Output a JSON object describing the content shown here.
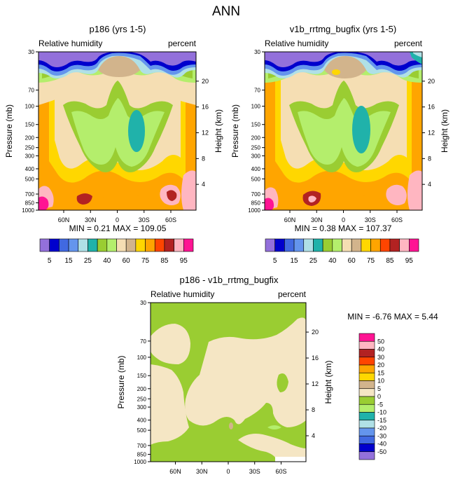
{
  "page": {
    "title": "ANN"
  },
  "colors": {
    "rh_scale": [
      "#9370DB",
      "#0000CD",
      "#4169E1",
      "#6495ED",
      "#B0E0E6",
      "#20B2AA",
      "#9ACD32",
      "#B4EE6C",
      "#F5DEB3",
      "#D2B48C",
      "#FFD700",
      "#FFA500",
      "#FF4500",
      "#B22222",
      "#FFB6C1",
      "#FF1493"
    ],
    "diff_scale": [
      "#FF1493",
      "#FFB6C1",
      "#B22222",
      "#FF4500",
      "#FFA500",
      "#FFD700",
      "#D2B48C",
      "#F5E6C4",
      "#9ACD32",
      "#B4EE6C",
      "#20B2AA",
      "#B0E0E6",
      "#6495ED",
      "#4169E1",
      "#0000CD",
      "#9370DB"
    ]
  },
  "chart_data": [
    {
      "type": "contour",
      "title": "p186 (yrs 1-5)",
      "left_label": "Relative humidity",
      "right_label": "percent",
      "ylabel": "Pressure (mb)",
      "y2label": "Height (km)",
      "x_ticks": [
        "60N",
        "30N",
        "0",
        "30S",
        "60S"
      ],
      "y_ticks": [
        "30",
        "70",
        "100",
        "150",
        "200",
        "250",
        "300",
        "400",
        "500",
        "700",
        "850",
        "1000"
      ],
      "y2_ticks": [
        "20",
        "16",
        "12",
        "8",
        "4"
      ],
      "stats": "MIN =   0.21  MAX = 109.05",
      "colorbar_labels": [
        "5",
        "15",
        "25",
        "40",
        "60",
        "75",
        "85",
        "95"
      ]
    },
    {
      "type": "contour",
      "title": "v1b_rrtmg_bugfix (yrs 1-5)",
      "left_label": "Relative humidity",
      "right_label": "percent",
      "ylabel": "Pressure (mb)",
      "y2label": "Height (km)",
      "x_ticks": [
        "60N",
        "30N",
        "0",
        "30S",
        "60S"
      ],
      "y_ticks": [
        "30",
        "70",
        "100",
        "150",
        "200",
        "250",
        "300",
        "400",
        "500",
        "700",
        "850",
        "1000"
      ],
      "y2_ticks": [
        "20",
        "16",
        "12",
        "8",
        "4"
      ],
      "stats": "MIN =   0.38  MAX = 107.37",
      "colorbar_labels": [
        "5",
        "15",
        "25",
        "40",
        "60",
        "75",
        "85",
        "95"
      ]
    },
    {
      "type": "contour",
      "title": "p186 - v1b_rrtmg_bugfix",
      "left_label": "Relative humidity",
      "right_label": "percent",
      "ylabel": "Pressure (mb)",
      "y2label": "Height (km)",
      "x_ticks": [
        "60N",
        "30N",
        "0",
        "30S",
        "60S"
      ],
      "y_ticks": [
        "30",
        "70",
        "100",
        "150",
        "200",
        "250",
        "300",
        "400",
        "500",
        "700",
        "850",
        "1000"
      ],
      "y2_ticks": [
        "20",
        "16",
        "12",
        "8",
        "4"
      ],
      "stats": "MIN =  -6.76  MAX =   5.44",
      "colorbar_labels": [
        "50",
        "40",
        "30",
        "20",
        "15",
        "10",
        "5",
        "0",
        "-5",
        "-10",
        "-15",
        "-20",
        "-30",
        "-40",
        "-50"
      ]
    }
  ]
}
